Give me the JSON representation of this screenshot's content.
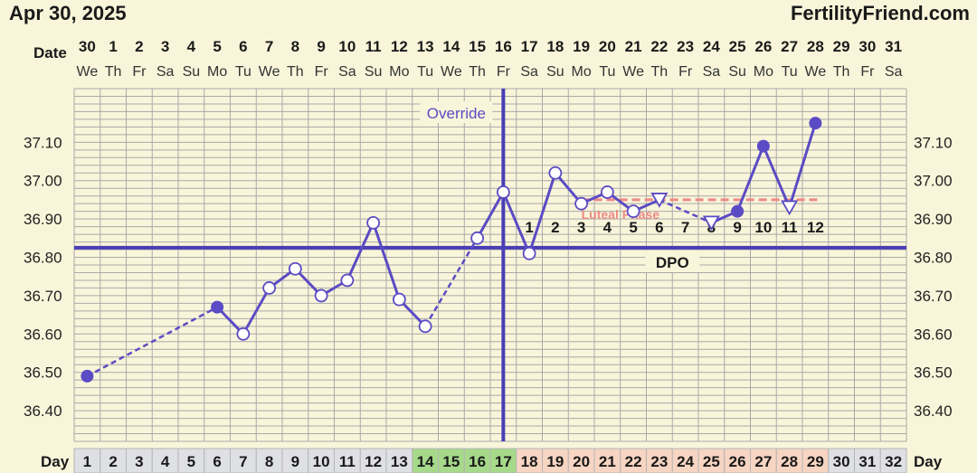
{
  "header": {
    "date": "Apr 30, 2025",
    "site": "FertilityFriend.com",
    "date_row_label": "Date",
    "day_row_label": "Day"
  },
  "chart_data": {
    "type": "line",
    "dates": [
      "30",
      "1",
      "2",
      "3",
      "4",
      "5",
      "6",
      "7",
      "8",
      "9",
      "10",
      "11",
      "12",
      "13",
      "14",
      "15",
      "16",
      "17",
      "18",
      "19",
      "20",
      "21",
      "22",
      "23",
      "24",
      "25",
      "26",
      "27",
      "28",
      "29",
      "30",
      "31"
    ],
    "weekdays": [
      "We",
      "Th",
      "Fr",
      "Sa",
      "Su",
      "Mo",
      "Tu",
      "We",
      "Th",
      "Fr",
      "Sa",
      "Su",
      "Mo",
      "Tu",
      "We",
      "Th",
      "Fr",
      "Sa",
      "Su",
      "Mo",
      "Tu",
      "We",
      "Th",
      "Fr",
      "Sa",
      "Su",
      "Mo",
      "Tu",
      "We",
      "Th",
      "Fr",
      "Sa"
    ],
    "days": [
      1,
      2,
      3,
      4,
      5,
      6,
      7,
      8,
      9,
      10,
      11,
      12,
      13,
      14,
      15,
      16,
      17,
      18,
      19,
      20,
      21,
      22,
      23,
      24,
      25,
      26,
      27,
      28,
      29,
      30,
      31,
      32
    ],
    "yticks": [
      "36.40",
      "36.50",
      "36.60",
      "36.70",
      "36.80",
      "36.90",
      "37.00",
      "37.10"
    ],
    "ylim": [
      36.32,
      37.24
    ],
    "temps": [
      {
        "day": 1,
        "value": 36.49,
        "marker": "filled"
      },
      {
        "day": 6,
        "value": 36.67,
        "marker": "filled"
      },
      {
        "day": 7,
        "value": 36.6,
        "marker": "open"
      },
      {
        "day": 8,
        "value": 36.72,
        "marker": "open"
      },
      {
        "day": 9,
        "value": 36.77,
        "marker": "open"
      },
      {
        "day": 10,
        "value": 36.7,
        "marker": "open"
      },
      {
        "day": 11,
        "value": 36.74,
        "marker": "open"
      },
      {
        "day": 12,
        "value": 36.89,
        "marker": "open"
      },
      {
        "day": 13,
        "value": 36.69,
        "marker": "open"
      },
      {
        "day": 14,
        "value": 36.62,
        "marker": "open"
      },
      {
        "day": 16,
        "value": 36.85,
        "marker": "open"
      },
      {
        "day": 17,
        "value": 36.97,
        "marker": "open"
      },
      {
        "day": 18,
        "value": 36.81,
        "marker": "open"
      },
      {
        "day": 19,
        "value": 37.02,
        "marker": "open"
      },
      {
        "day": 20,
        "value": 36.94,
        "marker": "open"
      },
      {
        "day": 21,
        "value": 36.97,
        "marker": "open"
      },
      {
        "day": 22,
        "value": 36.92,
        "marker": "open"
      },
      {
        "day": 23,
        "value": 36.95,
        "marker": "triangle"
      },
      {
        "day": 25,
        "value": 36.89,
        "marker": "triangle"
      },
      {
        "day": 26,
        "value": 36.92,
        "marker": "filled"
      },
      {
        "day": 27,
        "value": 37.09,
        "marker": "filled"
      },
      {
        "day": 28,
        "value": 36.93,
        "marker": "triangle"
      },
      {
        "day": 29,
        "value": 37.15,
        "marker": "filled"
      }
    ],
    "dashed_segments": [
      [
        1,
        6
      ],
      [
        14,
        16
      ],
      [
        23,
        25
      ]
    ],
    "coverline": {
      "value": 36.825
    },
    "ovulation": {
      "day": 17,
      "label": "Override"
    },
    "luteal_phase": {
      "value": 36.95,
      "from_day": 20,
      "to_day": 29,
      "label": "Luteal Phase"
    },
    "dpo": {
      "label": "DPO",
      "numbers": [
        "1",
        "2",
        "3",
        "4",
        "5",
        "6",
        "7",
        "8",
        "9",
        "10",
        "11",
        "12"
      ],
      "from_day": 18
    },
    "day_cell_colors": {
      "default": "#dfe0e3",
      "fertile": "#a6d98a",
      "luteal": "#f6d5c2"
    },
    "fertile_days": [
      14,
      15,
      16,
      17
    ],
    "luteal_days": [
      18,
      19,
      20,
      21,
      22,
      23,
      24,
      25,
      26,
      27,
      28,
      29
    ],
    "colors": {
      "line": "#5b4bc4",
      "coverline": "#4a3eb5",
      "luteal": "#ee8a85",
      "grid": "#a9a9a9",
      "background": "#f9f5da"
    }
  }
}
